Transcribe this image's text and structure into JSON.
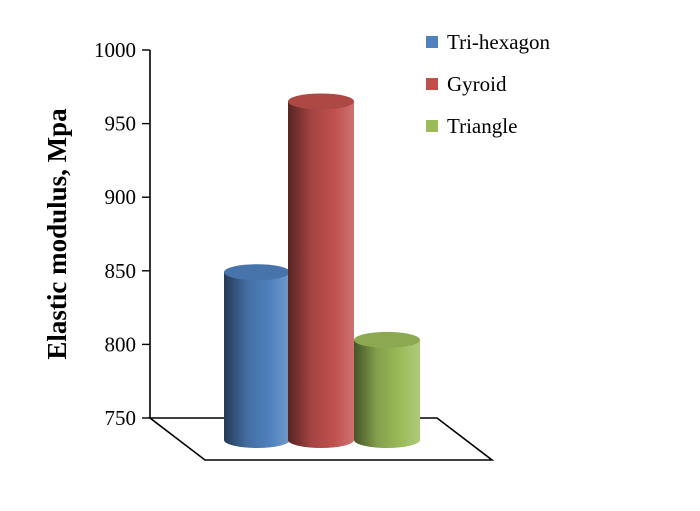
{
  "chart_data": {
    "type": "bar",
    "style": "3d-cylinder",
    "title": "",
    "xlabel": "",
    "ylabel": "Elastic modulus, Mpa",
    "ylim": [
      750,
      1000
    ],
    "yticks": [
      750,
      800,
      850,
      900,
      950,
      1000
    ],
    "ytick_labels": [
      "750",
      "800",
      "850",
      "900",
      "950",
      "1000"
    ],
    "grid": false,
    "legend_position": "top-right",
    "series": [
      {
        "name": "Tri-hexagon",
        "value": 864,
        "color": "#4f81bd"
      },
      {
        "name": "Gyroid",
        "value": 980,
        "color": "#c0504d"
      },
      {
        "name": "Triangle",
        "value": 818,
        "color": "#9bbb59"
      }
    ]
  }
}
